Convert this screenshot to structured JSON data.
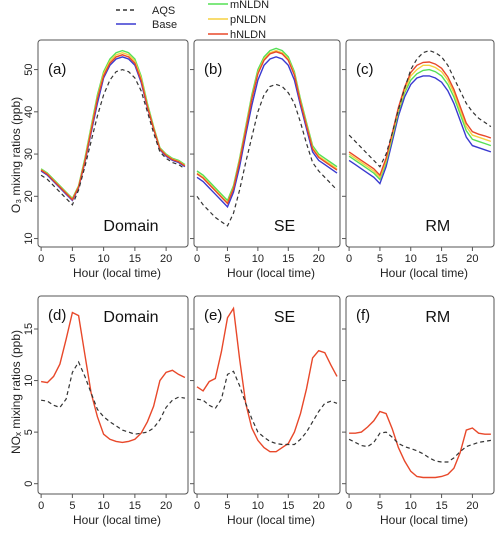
{
  "legend": {
    "items": [
      {
        "label": "AQS",
        "color": "#333333",
        "dash": true
      },
      {
        "label": "Base",
        "color": "#3a3ad0",
        "dash": false
      },
      {
        "label": "mNLDN",
        "color": "#55e055",
        "dash": false
      },
      {
        "label": "pNLDN",
        "color": "#f5d040",
        "dash": false
      },
      {
        "label": "hNLDN",
        "color": "#e8482a",
        "dash": false
      }
    ]
  },
  "ylabels": {
    "o3": "O₃ mixing ratios (ppb)",
    "nox": "NOₓ mixing ratios (ppb)"
  },
  "chart_data": [
    {
      "type": "line",
      "panel": "(a)",
      "region": "Domain",
      "xlabel": "Hour (local time)",
      "ylim": [
        8,
        57
      ],
      "yticks": [
        10,
        20,
        30,
        40,
        50
      ],
      "xticks": [
        0,
        5,
        10,
        15,
        20
      ],
      "xlim": [
        -0.5,
        23.5
      ],
      "x": [
        0,
        1,
        2,
        3,
        4,
        5,
        6,
        7,
        8,
        9,
        10,
        11,
        12,
        13,
        14,
        15,
        16,
        17,
        18,
        19,
        20,
        21,
        22,
        23
      ],
      "series": [
        {
          "name": "AQS",
          "values": [
            25,
            24,
            22.5,
            21,
            19.5,
            18,
            21.5,
            27,
            33,
            39,
            44,
            47.5,
            49.5,
            50,
            49.5,
            48,
            45,
            40,
            35,
            30.5,
            29,
            28,
            27.5,
            26.5
          ]
        },
        {
          "name": "Base",
          "values": [
            26,
            25,
            23.5,
            22,
            20.5,
            19,
            22,
            28,
            35,
            42,
            48,
            51,
            52.5,
            53,
            52.5,
            51,
            47,
            41,
            36,
            31,
            29.5,
            28.5,
            28,
            27
          ]
        },
        {
          "name": "mNLDN",
          "values": [
            26.5,
            25.5,
            24,
            22.5,
            21,
            19.5,
            22.5,
            29,
            36.5,
            44,
            49.5,
            52.5,
            54,
            54.5,
            54,
            52.5,
            48.5,
            42,
            36.5,
            31.5,
            30,
            29,
            28.5,
            27.5
          ]
        },
        {
          "name": "pNLDN",
          "values": [
            26.3,
            25.3,
            23.8,
            22.3,
            20.8,
            19.3,
            22.3,
            28.5,
            36,
            43.3,
            49,
            52,
            53.5,
            54,
            53.5,
            52,
            48,
            41.5,
            36.2,
            31.3,
            29.8,
            28.8,
            28.3,
            27.3
          ]
        },
        {
          "name": "hNLDN",
          "values": [
            26.2,
            25.2,
            23.7,
            22.2,
            20.7,
            19.2,
            22.2,
            28.3,
            35.5,
            43,
            48.5,
            51.5,
            53,
            53.5,
            53,
            51.5,
            47.5,
            41.2,
            36,
            31.2,
            29.7,
            28.7,
            28.2,
            27.2
          ]
        }
      ]
    },
    {
      "type": "line",
      "panel": "(b)",
      "region": "SE",
      "xlabel": "Hour (local time)",
      "ylim": [
        8,
        57
      ],
      "yticks": [
        10,
        20,
        30,
        40,
        50
      ],
      "xticks": [
        0,
        5,
        10,
        15,
        20
      ],
      "xlim": [
        -0.5,
        23.5
      ],
      "x": [
        0,
        1,
        2,
        3,
        4,
        5,
        6,
        7,
        8,
        9,
        10,
        11,
        12,
        13,
        14,
        15,
        16,
        17,
        18,
        19,
        20,
        21,
        22,
        23
      ],
      "series": [
        {
          "name": "AQS",
          "values": [
            20,
            18,
            16.5,
            15,
            14,
            13,
            16,
            21.5,
            28,
            34,
            40,
            44,
            46,
            46.5,
            46,
            44.5,
            42,
            37.5,
            32.5,
            28,
            26,
            24.5,
            23,
            21.5
          ]
        },
        {
          "name": "Base",
          "values": [
            24.5,
            23.5,
            22,
            20.5,
            19,
            17.5,
            21,
            27,
            34.5,
            41.5,
            47.5,
            51,
            52.5,
            53,
            52.5,
            51,
            47.5,
            41.5,
            36,
            30.5,
            28.5,
            27.5,
            26.5,
            25.5
          ]
        },
        {
          "name": "mNLDN",
          "values": [
            26,
            25,
            23.5,
            22,
            20.5,
            19,
            22.5,
            29,
            36.5,
            44,
            50,
            53,
            54.5,
            55,
            54.5,
            53,
            49.5,
            43,
            37.5,
            32,
            30,
            29,
            28,
            27
          ]
        },
        {
          "name": "pNLDN",
          "values": [
            25.5,
            24.5,
            23,
            21.5,
            20,
            18.5,
            22,
            28.5,
            36,
            43.3,
            49.3,
            52.5,
            54,
            54.5,
            54,
            52.5,
            49,
            42.5,
            37,
            31.5,
            29.5,
            28.5,
            27.5,
            26.5
          ]
        },
        {
          "name": "hNLDN",
          "values": [
            25.3,
            24.3,
            22.8,
            21.3,
            19.8,
            18.3,
            21.8,
            28.2,
            35.5,
            43,
            49,
            52.2,
            53.7,
            54.2,
            53.7,
            52.2,
            48.7,
            42.2,
            36.7,
            31.2,
            29.2,
            28.2,
            27.2,
            26.2
          ]
        }
      ]
    },
    {
      "type": "line",
      "panel": "(c)",
      "region": "RM",
      "xlabel": "Hour (local time)",
      "ylim": [
        8,
        57
      ],
      "yticks": [
        10,
        20,
        30,
        40,
        50
      ],
      "xticks": [
        0,
        5,
        10,
        15,
        20
      ],
      "xlim": [
        -0.5,
        23.5
      ],
      "x": [
        0,
        1,
        2,
        3,
        4,
        5,
        6,
        7,
        8,
        9,
        10,
        11,
        12,
        13,
        14,
        15,
        16,
        17,
        18,
        19,
        20,
        21,
        22,
        23
      ],
      "series": [
        {
          "name": "AQS",
          "values": [
            34.5,
            33,
            31.5,
            30,
            28.5,
            27,
            30,
            35,
            40.5,
            45.5,
            50,
            52.5,
            54,
            54.5,
            54,
            53,
            51,
            48,
            45,
            42,
            40,
            38.5,
            37.5,
            36.5
          ]
        },
        {
          "name": "Base",
          "values": [
            28.5,
            27.5,
            26.5,
            25.5,
            24.5,
            23,
            27,
            33,
            39,
            43.5,
            46.5,
            48,
            48.5,
            48.5,
            48,
            47,
            45,
            42,
            38,
            34,
            32,
            31.5,
            31,
            30.5
          ]
        },
        {
          "name": "mNLDN",
          "values": [
            29.5,
            28.5,
            27.5,
            26.5,
            25.5,
            24,
            28,
            34,
            40,
            44.5,
            47.5,
            49,
            49.8,
            50,
            49.5,
            48.5,
            46.5,
            43.5,
            39.5,
            35.5,
            33.5,
            33,
            32.5,
            32
          ]
        },
        {
          "name": "pNLDN",
          "values": [
            30,
            29,
            28,
            27,
            26,
            24.5,
            28.5,
            34.5,
            40.5,
            45,
            48.5,
            50,
            51,
            51,
            50.5,
            49.5,
            47.5,
            44.5,
            40.5,
            36.5,
            34.5,
            34,
            33.5,
            33
          ]
        },
        {
          "name": "hNLDN",
          "values": [
            30.5,
            29.5,
            28.5,
            27.5,
            26.5,
            25,
            29,
            35,
            41,
            45.8,
            49.3,
            51,
            51.7,
            51.8,
            51.3,
            50.3,
            48.3,
            45.3,
            41.3,
            37.3,
            35.3,
            34.7,
            34.3,
            33.8
          ]
        }
      ]
    },
    {
      "type": "line",
      "panel": "(d)",
      "region": "Domain",
      "xlabel": "Hour (local time)",
      "ylim": [
        -1,
        18.2
      ],
      "yticks": [
        0,
        5,
        10,
        15
      ],
      "xticks": [
        0,
        5,
        10,
        15,
        20
      ],
      "xlim": [
        -0.5,
        23.5
      ],
      "x": [
        0,
        1,
        2,
        3,
        4,
        5,
        6,
        7,
        8,
        9,
        10,
        11,
        12,
        13,
        14,
        15,
        16,
        17,
        18,
        19,
        20,
        21,
        22,
        23
      ],
      "series": [
        {
          "name": "AQS",
          "values": [
            8.1,
            8,
            7.6,
            7.4,
            8.2,
            10.8,
            11.8,
            10.4,
            8.8,
            7.2,
            6.5,
            6,
            5.6,
            5.2,
            5.0,
            4.8,
            4.9,
            5.0,
            5.4,
            6.2,
            7.4,
            8.1,
            8.4,
            8.3
          ]
        },
        {
          "name": "hNLDN",
          "values": [
            9.9,
            9.8,
            10.4,
            11.6,
            14.0,
            16.6,
            16.3,
            12.5,
            8.8,
            6.5,
            4.8,
            4.3,
            4.1,
            4.0,
            4.1,
            4.3,
            4.9,
            6.0,
            7.5,
            10.0,
            10.8,
            11.0,
            10.6,
            10.3
          ]
        }
      ]
    },
    {
      "type": "line",
      "panel": "(e)",
      "region": "SE",
      "xlabel": "Hour (local time)",
      "ylim": [
        -1,
        18.2
      ],
      "yticks": [
        0,
        5,
        10,
        15
      ],
      "xticks": [
        0,
        5,
        10,
        15,
        20
      ],
      "xlim": [
        -0.5,
        23.5
      ],
      "x": [
        0,
        1,
        2,
        3,
        4,
        5,
        6,
        7,
        8,
        9,
        10,
        11,
        12,
        13,
        14,
        15,
        16,
        17,
        18,
        19,
        20,
        21,
        22,
        23
      ],
      "series": [
        {
          "name": "AQS",
          "values": [
            8.2,
            8.1,
            7.6,
            7.3,
            8.2,
            10.6,
            10.9,
            9.5,
            7.8,
            6.3,
            5.0,
            4.5,
            4.1,
            3.9,
            3.8,
            3.8,
            3.8,
            4.3,
            5.0,
            6.0,
            7.0,
            7.8,
            8.0,
            7.8
          ]
        },
        {
          "name": "hNLDN",
          "values": [
            9.4,
            9.0,
            9.9,
            10.2,
            12.8,
            16.1,
            17.0,
            12.1,
            7.8,
            5.4,
            4.2,
            3.5,
            3.1,
            3.1,
            3.5,
            3.9,
            5.0,
            6.8,
            9.2,
            12.2,
            12.9,
            12.7,
            11.5,
            10.4
          ]
        }
      ]
    },
    {
      "type": "line",
      "panel": "(f)",
      "region": "RM",
      "xlabel": "Hour (local time)",
      "ylim": [
        -1,
        18.2
      ],
      "yticks": [
        0,
        5,
        10,
        15
      ],
      "xticks": [
        0,
        5,
        10,
        15,
        20
      ],
      "xlim": [
        -0.5,
        23.5
      ],
      "x": [
        0,
        1,
        2,
        3,
        4,
        5,
        6,
        7,
        8,
        9,
        10,
        11,
        12,
        13,
        14,
        15,
        16,
        17,
        18,
        19,
        20,
        21,
        22,
        23
      ],
      "series": [
        {
          "name": "AQS",
          "values": [
            4.3,
            4.0,
            3.7,
            3.6,
            4.0,
            4.9,
            5.0,
            4.5,
            3.9,
            3.6,
            3.4,
            3.2,
            2.9,
            2.5,
            2.2,
            2.1,
            2.1,
            2.5,
            3.1,
            3.6,
            3.8,
            4.0,
            4.1,
            4.2
          ]
        },
        {
          "name": "hNLDN",
          "values": [
            4.9,
            4.9,
            5.0,
            5.5,
            6.1,
            7.0,
            6.8,
            5.3,
            3.5,
            2.2,
            1.2,
            0.7,
            0.6,
            0.6,
            0.6,
            0.7,
            0.9,
            1.5,
            3.0,
            5.2,
            5.4,
            4.9,
            4.8,
            4.8
          ]
        }
      ]
    }
  ]
}
